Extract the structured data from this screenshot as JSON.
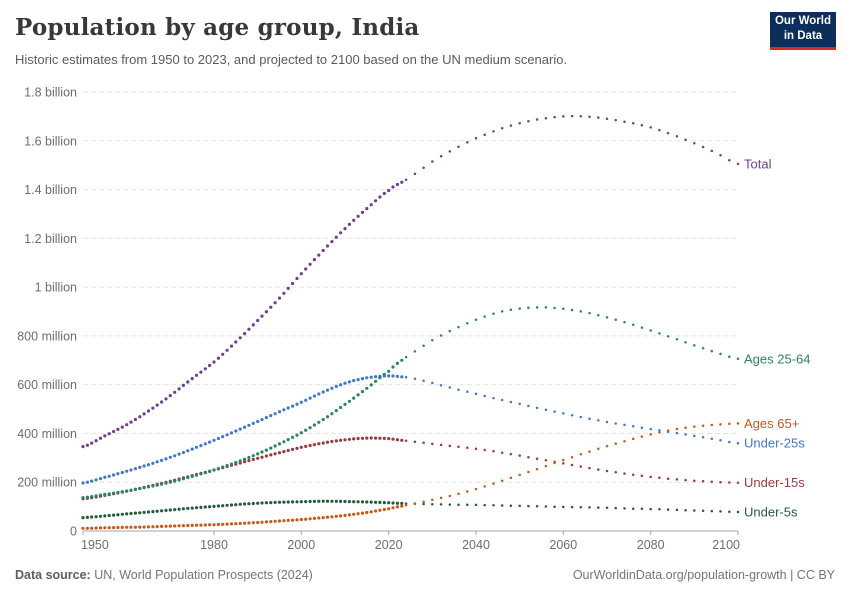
{
  "header": {
    "title": "Population by age group, India",
    "subtitle": "Historic estimates from 1950 to 2023, and projected to 2100 based on the UN medium scenario.",
    "logo": {
      "line1": "Our World",
      "line2": "in Data",
      "bg": "#0d2e5a",
      "stripe": "#d8281f"
    }
  },
  "footer": {
    "source_label": "Data source:",
    "source_text": " UN, World Population Prospects (2024)",
    "right_text": "OurWorldinData.org/population-growth | CC BY"
  },
  "chart_data": {
    "type": "line",
    "title": "Population by age group, India",
    "unit": "people (millions)",
    "x_range": [
      1950,
      2100
    ],
    "ylim_millions": [
      0,
      1800
    ],
    "split_year": 2023,
    "style_note": "dense dots = historic estimates (1950-2023), sparse dots = UN medium projection (2024-2100)",
    "grid": "horizontal dashed",
    "legend_position": "right of line ends",
    "x_ticks": [
      1950,
      1980,
      2000,
      2020,
      2040,
      2060,
      2080,
      2100
    ],
    "y_ticks": [
      {
        "value": 0,
        "label": "0"
      },
      {
        "value": 200,
        "label": "200 million"
      },
      {
        "value": 400,
        "label": "400 million"
      },
      {
        "value": 600,
        "label": "600 million"
      },
      {
        "value": 800,
        "label": "800 million"
      },
      {
        "value": 1000,
        "label": "1 billion"
      },
      {
        "value": 1200,
        "label": "1.2 billion"
      },
      {
        "value": 1400,
        "label": "1.4 billion"
      },
      {
        "value": 1600,
        "label": "1.6 billion"
      },
      {
        "value": 1800,
        "label": "1.8 billion"
      }
    ],
    "series": [
      {
        "name": "Under-25s",
        "color": "#4277c4",
        "points": [
          [
            1950,
            197
          ],
          [
            1955,
            220
          ],
          [
            1960,
            245
          ],
          [
            1965,
            272
          ],
          [
            1970,
            302
          ],
          [
            1975,
            336
          ],
          [
            1980,
            372
          ],
          [
            1985,
            410
          ],
          [
            1990,
            449
          ],
          [
            1995,
            489
          ],
          [
            2000,
            528
          ],
          [
            2005,
            570
          ],
          [
            2010,
            606
          ],
          [
            2015,
            628
          ],
          [
            2020,
            636
          ],
          [
            2023,
            632
          ],
          [
            2025,
            627
          ],
          [
            2030,
            607
          ],
          [
            2035,
            584
          ],
          [
            2040,
            562
          ],
          [
            2045,
            541
          ],
          [
            2050,
            521
          ],
          [
            2055,
            501
          ],
          [
            2060,
            482
          ],
          [
            2065,
            464
          ],
          [
            2070,
            447
          ],
          [
            2075,
            432
          ],
          [
            2080,
            418
          ],
          [
            2085,
            404
          ],
          [
            2090,
            390
          ],
          [
            2095,
            375
          ],
          [
            2100,
            360
          ]
        ]
      },
      {
        "name": "Under-15s",
        "color": "#983a3f",
        "points": [
          [
            1950,
            132
          ],
          [
            1955,
            146
          ],
          [
            1960,
            163
          ],
          [
            1965,
            183
          ],
          [
            1970,
            204
          ],
          [
            1975,
            227
          ],
          [
            1980,
            250
          ],
          [
            1985,
            274
          ],
          [
            1990,
            298
          ],
          [
            1995,
            321
          ],
          [
            2000,
            343
          ],
          [
            2005,
            361
          ],
          [
            2010,
            374
          ],
          [
            2015,
            381
          ],
          [
            2020,
            379
          ],
          [
            2023,
            372
          ],
          [
            2025,
            368
          ],
          [
            2030,
            357
          ],
          [
            2035,
            347
          ],
          [
            2040,
            337
          ],
          [
            2045,
            324
          ],
          [
            2050,
            309
          ],
          [
            2055,
            293
          ],
          [
            2060,
            277
          ],
          [
            2065,
            261
          ],
          [
            2070,
            246
          ],
          [
            2075,
            233
          ],
          [
            2080,
            222
          ],
          [
            2085,
            213
          ],
          [
            2090,
            206
          ],
          [
            2095,
            201
          ],
          [
            2100,
            198
          ]
        ]
      },
      {
        "name": "Under-5s",
        "color": "#265b3a",
        "points": [
          [
            1950,
            55
          ],
          [
            1955,
            62
          ],
          [
            1960,
            70
          ],
          [
            1965,
            78
          ],
          [
            1970,
            86
          ],
          [
            1975,
            94
          ],
          [
            1980,
            101
          ],
          [
            1985,
            108
          ],
          [
            1990,
            114
          ],
          [
            1995,
            118
          ],
          [
            2000,
            120
          ],
          [
            2005,
            122
          ],
          [
            2010,
            121
          ],
          [
            2015,
            119
          ],
          [
            2020,
            116
          ],
          [
            2023,
            113
          ],
          [
            2025,
            112
          ],
          [
            2030,
            110
          ],
          [
            2035,
            108
          ],
          [
            2040,
            107
          ],
          [
            2045,
            105
          ],
          [
            2050,
            103
          ],
          [
            2055,
            101
          ],
          [
            2060,
            99
          ],
          [
            2065,
            97
          ],
          [
            2070,
            95
          ],
          [
            2075,
            92
          ],
          [
            2080,
            90
          ],
          [
            2085,
            87
          ],
          [
            2090,
            84
          ],
          [
            2095,
            81
          ],
          [
            2100,
            78
          ]
        ]
      },
      {
        "name": "Ages 65+",
        "color": "#c6591b",
        "points": [
          [
            1950,
            11
          ],
          [
            1955,
            13
          ],
          [
            1960,
            15
          ],
          [
            1965,
            17
          ],
          [
            1970,
            20
          ],
          [
            1975,
            23
          ],
          [
            1980,
            26
          ],
          [
            1985,
            30
          ],
          [
            1990,
            35
          ],
          [
            1995,
            41
          ],
          [
            2000,
            47
          ],
          [
            2005,
            55
          ],
          [
            2010,
            64
          ],
          [
            2015,
            76
          ],
          [
            2020,
            91
          ],
          [
            2023,
            102
          ],
          [
            2025,
            110
          ],
          [
            2030,
            128
          ],
          [
            2035,
            148
          ],
          [
            2040,
            172
          ],
          [
            2045,
            200
          ],
          [
            2050,
            230
          ],
          [
            2055,
            260
          ],
          [
            2060,
            291
          ],
          [
            2065,
            320
          ],
          [
            2070,
            348
          ],
          [
            2075,
            373
          ],
          [
            2080,
            396
          ],
          [
            2085,
            415
          ],
          [
            2090,
            428
          ],
          [
            2095,
            436
          ],
          [
            2100,
            441
          ]
        ]
      },
      {
        "name": "Ages 25-64",
        "color": "#2c8465",
        "points": [
          [
            1950,
            137
          ],
          [
            1955,
            150
          ],
          [
            1960,
            164
          ],
          [
            1965,
            181
          ],
          [
            1970,
            200
          ],
          [
            1975,
            224
          ],
          [
            1980,
            250
          ],
          [
            1985,
            281
          ],
          [
            1990,
            316
          ],
          [
            1995,
            357
          ],
          [
            2000,
            403
          ],
          [
            2005,
            457
          ],
          [
            2010,
            519
          ],
          [
            2015,
            585
          ],
          [
            2020,
            655
          ],
          [
            2023,
            700
          ],
          [
            2025,
            727
          ],
          [
            2030,
            782
          ],
          [
            2035,
            828
          ],
          [
            2040,
            866
          ],
          [
            2045,
            896
          ],
          [
            2050,
            912
          ],
          [
            2055,
            917
          ],
          [
            2060,
            911
          ],
          [
            2065,
            897
          ],
          [
            2070,
            876
          ],
          [
            2075,
            851
          ],
          [
            2080,
            822
          ],
          [
            2085,
            792
          ],
          [
            2090,
            761
          ],
          [
            2095,
            732
          ],
          [
            2100,
            706
          ]
        ]
      },
      {
        "name": "Total",
        "color": "#6d3e91",
        "points": [
          [
            1950,
            346
          ],
          [
            1955,
            390
          ],
          [
            1960,
            436
          ],
          [
            1965,
            492
          ],
          [
            1970,
            555
          ],
          [
            1975,
            625
          ],
          [
            1980,
            693
          ],
          [
            1985,
            775
          ],
          [
            1990,
            863
          ],
          [
            1995,
            955
          ],
          [
            2000,
            1055
          ],
          [
            2005,
            1150
          ],
          [
            2010,
            1240
          ],
          [
            2015,
            1322
          ],
          [
            2020,
            1396
          ],
          [
            2023,
            1430
          ],
          [
            2025,
            1454
          ],
          [
            2030,
            1515
          ],
          [
            2035,
            1566
          ],
          [
            2040,
            1610
          ],
          [
            2045,
            1645
          ],
          [
            2050,
            1672
          ],
          [
            2055,
            1690
          ],
          [
            2060,
            1700
          ],
          [
            2065,
            1700
          ],
          [
            2070,
            1690
          ],
          [
            2075,
            1675
          ],
          [
            2080,
            1655
          ],
          [
            2085,
            1625
          ],
          [
            2090,
            1590
          ],
          [
            2095,
            1550
          ],
          [
            2100,
            1505
          ]
        ]
      }
    ]
  }
}
